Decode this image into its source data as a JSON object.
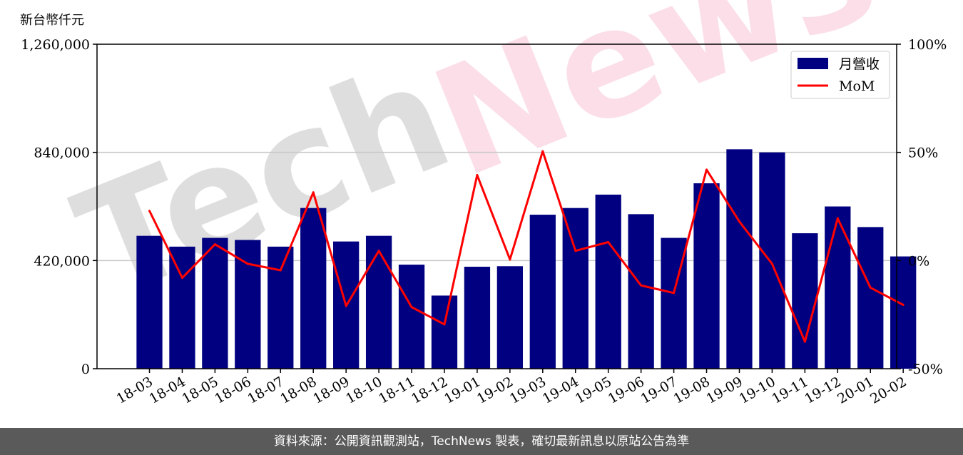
{
  "chart_data": {
    "type": "bar",
    "unit_label": "新台幣仟元",
    "categories": [
      "18-03",
      "18-04",
      "18-05",
      "18-06",
      "18-07",
      "18-08",
      "18-09",
      "18-10",
      "18-11",
      "18-12",
      "19-01",
      "19-02",
      "19-03",
      "19-04",
      "19-05",
      "19-06",
      "19-07",
      "19-08",
      "19-09",
      "19-10",
      "19-11",
      "19-12",
      "20-01",
      "20-02"
    ],
    "series": [
      {
        "name": "月營收",
        "type": "bar",
        "axis": "left",
        "color": "#000080",
        "values": [
          516000,
          474000,
          508000,
          500000,
          474000,
          624000,
          494000,
          516000,
          404000,
          284000,
          396000,
          398000,
          598000,
          624000,
          676000,
          600000,
          508000,
          720000,
          852000,
          840000,
          526000,
          630000,
          550000,
          436000
        ]
      },
      {
        "name": "MoM",
        "type": "line",
        "axis": "right",
        "color": "#ff0000",
        "values": [
          23.0,
          -8.0,
          7.5,
          -1.5,
          -4.5,
          31.5,
          -21.0,
          4.5,
          -21.5,
          -29.5,
          39.5,
          0.5,
          50.5,
          4.5,
          8.5,
          -11.5,
          -15.0,
          42.0,
          18.0,
          -1.5,
          -37.5,
          19.5,
          -12.5,
          -20.5
        ]
      }
    ],
    "y_left": {
      "ticks": [
        "0",
        "420,000",
        "840,000",
        "1,260,000"
      ],
      "ylim": [
        0,
        1260000
      ]
    },
    "y_right": {
      "ticks": [
        "-50%",
        "0%",
        "50%",
        "100%"
      ],
      "ylim": [
        -50,
        100
      ]
    },
    "grid": "horizontal at left major ticks",
    "legend": {
      "position": "top-right",
      "entries": [
        "月營收",
        "MoM"
      ]
    },
    "watermark": "TechNews"
  },
  "footer": {
    "text": "資料來源：公開資訊觀測站，TechNews 製表，確切最新訊息以原站公告為準"
  }
}
